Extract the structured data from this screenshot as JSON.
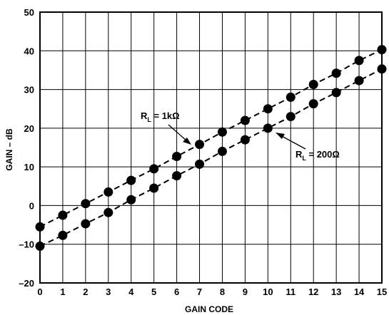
{
  "chart_data": {
    "type": "line",
    "title": "",
    "xlabel": "GAIN CODE",
    "ylabel": "GAIN – dB",
    "xlim": [
      0,
      15
    ],
    "ylim": [
      -20,
      50
    ],
    "x_ticks": [
      "0",
      "1",
      "2",
      "3",
      "4",
      "5",
      "6",
      "7",
      "8",
      "9",
      "10",
      "11",
      "12",
      "13",
      "14",
      "15"
    ],
    "y_ticks": [
      "–20",
      "–10",
      "0",
      "10",
      "20",
      "30",
      "40",
      "50"
    ],
    "grid": true,
    "line_style": "dashed",
    "marker": "filled-circle",
    "x": [
      0,
      1,
      2,
      3,
      4,
      5,
      6,
      7,
      8,
      9,
      10,
      11,
      12,
      13,
      14,
      15
    ],
    "series": [
      {
        "label_main": "R",
        "label_sub": "L",
        "label_rest": " = 1kΩ",
        "values": [
          -5.5,
          -2.5,
          0.5,
          3.5,
          6.5,
          9.5,
          12.7,
          15.8,
          19,
          22,
          25,
          28,
          31.3,
          34.2,
          37.5,
          40.3
        ]
      },
      {
        "label_main": "R",
        "label_sub": "L",
        "label_rest": " = 200Ω",
        "values": [
          -10.5,
          -7.7,
          -4.7,
          -1.8,
          1.5,
          4.5,
          7.7,
          10.7,
          14,
          17,
          20,
          23,
          26.3,
          29.2,
          32.3,
          35.3
        ]
      }
    ],
    "colors": {
      "line": "#000000",
      "marker": "#000000",
      "grid": "#000000"
    }
  }
}
